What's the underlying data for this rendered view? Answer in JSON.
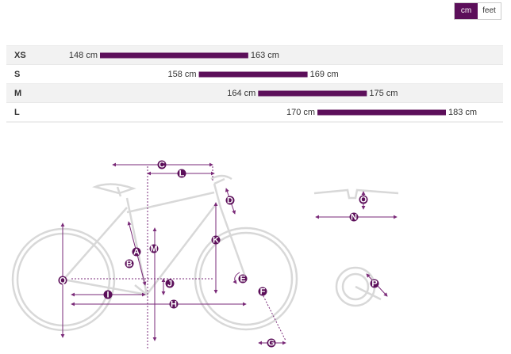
{
  "unit_toggle": {
    "options": [
      "cm",
      "feet"
    ],
    "selected": "cm"
  },
  "sizes": [
    {
      "size": "XS",
      "min": 148,
      "max": 163,
      "min_label": "148 cm",
      "max_label": "163 cm"
    },
    {
      "size": "S",
      "min": 158,
      "max": 169,
      "min_label": "158 cm",
      "max_label": "169 cm"
    },
    {
      "size": "M",
      "min": 164,
      "max": 175,
      "min_label": "164 cm",
      "max_label": "175 cm"
    },
    {
      "size": "L",
      "min": 170,
      "max": 183,
      "min_label": "170 cm",
      "max_label": "183 cm"
    }
  ],
  "diagram": {
    "markers": [
      "C",
      "L",
      "D",
      "A",
      "M",
      "B",
      "K",
      "J",
      "E",
      "F",
      "Q",
      "I",
      "H",
      "G",
      "O",
      "N",
      "P"
    ]
  }
}
